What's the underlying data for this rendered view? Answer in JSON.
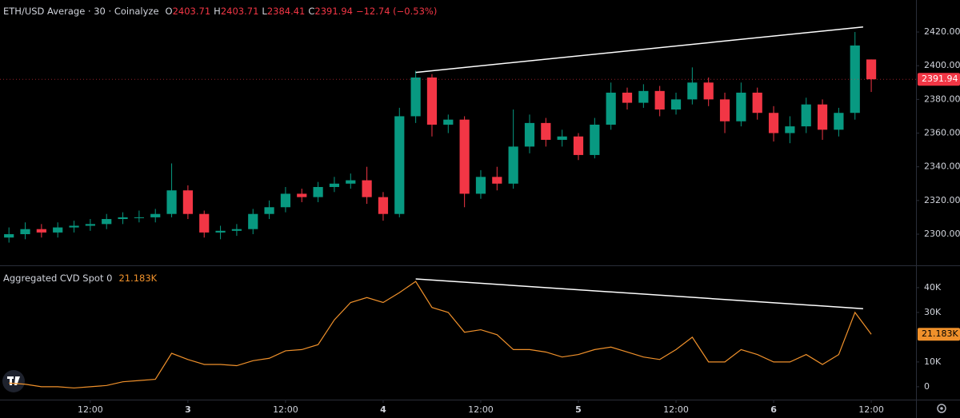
{
  "legend": {
    "symbol": "ETH/USD Average · 30 · Coinalyze",
    "o": "O",
    "h": "H",
    "l": "L",
    "c": "C",
    "change": "−12.74 (−0.53%)"
  },
  "chart_data": [
    {
      "type": "candlestick",
      "x": [
        2,
        4,
        6,
        8,
        10,
        12,
        14,
        16,
        18,
        20,
        22,
        24,
        26,
        28,
        30,
        32,
        34,
        36,
        38,
        40,
        42,
        44,
        46,
        48,
        50,
        52,
        54,
        56,
        58,
        60,
        62,
        64,
        66,
        68,
        70,
        72,
        74,
        76,
        78,
        80,
        82,
        84,
        86,
        88,
        90,
        92,
        94,
        96,
        98,
        100,
        102,
        104,
        106,
        108
      ],
      "open": [
        2298,
        2300,
        2303,
        2301,
        2304,
        2305,
        2306,
        2309,
        2310,
        2310,
        2312,
        2326,
        2312,
        2301,
        2302,
        2303,
        2312,
        2316,
        2324,
        2322,
        2328,
        2330,
        2332,
        2322,
        2312,
        2370,
        2393,
        2365,
        2368,
        2324,
        2334,
        2330,
        2352,
        2366,
        2356,
        2358,
        2347,
        2365,
        2384,
        2378,
        2385,
        2374,
        2380,
        2390,
        2380,
        2367,
        2384,
        2372,
        2360,
        2364,
        2377,
        2362,
        2372,
        2403.71
      ],
      "high": [
        2304,
        2307,
        2306,
        2307,
        2308,
        2309,
        2312,
        2313,
        2314,
        2315,
        2342,
        2329,
        2314,
        2305,
        2306,
        2315,
        2320,
        2328,
        2327,
        2331,
        2334,
        2336,
        2340,
        2325,
        2375,
        2397,
        2395,
        2371,
        2370,
        2338,
        2340,
        2374,
        2371,
        2369,
        2362,
        2360,
        2369,
        2390,
        2387,
        2389,
        2388,
        2384,
        2399,
        2393,
        2384,
        2390,
        2387,
        2376,
        2370,
        2381,
        2380,
        2375,
        2420,
        2403.71
      ],
      "low": [
        2295,
        2297,
        2298,
        2298,
        2301,
        2302,
        2303,
        2306,
        2307,
        2307,
        2310,
        2309,
        2298,
        2297,
        2299,
        2300,
        2309,
        2313,
        2319,
        2319,
        2325,
        2327,
        2318,
        2308,
        2310,
        2366,
        2358,
        2360,
        2316,
        2321,
        2326,
        2327,
        2348,
        2352,
        2352,
        2344,
        2345,
        2362,
        2374,
        2375,
        2370,
        2371,
        2377,
        2376,
        2360,
        2364,
        2368,
        2355,
        2354,
        2360,
        2356,
        2358,
        2368,
        2384.41
      ],
      "close": [
        2300,
        2303,
        2301,
        2304,
        2305,
        2306,
        2309,
        2310,
        2310,
        2312,
        2326,
        2312,
        2301,
        2302,
        2303,
        2312,
        2316,
        2324,
        2322,
        2328,
        2330,
        2332,
        2322,
        2312,
        2370,
        2393,
        2365,
        2368,
        2324,
        2334,
        2330,
        2352,
        2366,
        2356,
        2358,
        2347,
        2365,
        2384,
        2378,
        2385,
        2374,
        2380,
        2390,
        2380,
        2367,
        2384,
        2372,
        2360,
        2364,
        2377,
        2362,
        2372,
        2412,
        2391.94
      ],
      "up_color": "#089981",
      "down_color": "#f23645",
      "xlim": [
        0.9,
        113.5
      ],
      "ylim": [
        2281.5,
        2439
      ],
      "yticks": [
        {
          "value": 2300,
          "label": "2300.00"
        },
        {
          "value": 2320,
          "label": "2320.00"
        },
        {
          "value": 2340,
          "label": "2340.00"
        },
        {
          "value": 2360,
          "label": "2360.00"
        },
        {
          "value": 2380,
          "label": "2380.00"
        },
        {
          "value": 2400,
          "label": "2400.00"
        },
        {
          "value": 2420,
          "label": "2420.00"
        }
      ],
      "trendline": {
        "x": [
          52,
          107
        ],
        "y": [
          2396,
          2423
        ],
        "color": "#ffffff"
      }
    },
    {
      "type": "line",
      "title": "Aggregated CVD Spot 0",
      "x": [
        2,
        4,
        6,
        8,
        10,
        12,
        14,
        16,
        18,
        20,
        22,
        24,
        26,
        28,
        30,
        32,
        34,
        36,
        38,
        40,
        42,
        44,
        46,
        48,
        50,
        52,
        54,
        56,
        58,
        60,
        62,
        64,
        66,
        68,
        70,
        72,
        74,
        76,
        78,
        80,
        82,
        84,
        86,
        88,
        90,
        92,
        94,
        96,
        98,
        100,
        102,
        104,
        106,
        108
      ],
      "series": [
        {
          "name": "Aggregated CVD Spot",
          "color": "#f0912b",
          "values": [
            1500,
            1000,
            0,
            0,
            -500,
            0,
            500,
            2000,
            2500,
            3000,
            13500,
            11000,
            9000,
            9000,
            8500,
            10500,
            11500,
            14500,
            15000,
            17000,
            27000,
            34000,
            36000,
            34000,
            38000,
            42500,
            32000,
            30000,
            22000,
            23000,
            21000,
            15000,
            15000,
            14000,
            12000,
            13000,
            15000,
            16000,
            14000,
            12000,
            11000,
            15000,
            20000,
            10000,
            10000,
            15000,
            13000,
            10000,
            10000,
            13000,
            9000,
            13000,
            30000,
            21183
          ],
          "last_value_label": "21.183K"
        }
      ],
      "xlim": [
        0.9,
        113.5
      ],
      "ylim": [
        -5200,
        49000
      ],
      "yticks": [
        0,
        {
          "value": 10000,
          "label": "10K"
        },
        {
          "value": 30000,
          "label": "30K"
        },
        {
          "value": 40000,
          "label": "40K"
        }
      ],
      "xticks": [
        {
          "value": 12,
          "label": "12:00"
        },
        {
          "value": 24,
          "label": "3"
        },
        {
          "value": 36,
          "label": "12:00"
        },
        {
          "value": 48,
          "label": "4"
        },
        {
          "value": 60,
          "label": "12:00"
        },
        {
          "value": 72,
          "label": "5"
        },
        {
          "value": 84,
          "label": "12:00"
        },
        {
          "value": 96,
          "label": "6"
        },
        {
          "value": 108,
          "label": "12:00"
        }
      ],
      "trendline": {
        "x": [
          52,
          107
        ],
        "y": [
          43500,
          31500
        ],
        "color": "#ffffff"
      }
    }
  ]
}
